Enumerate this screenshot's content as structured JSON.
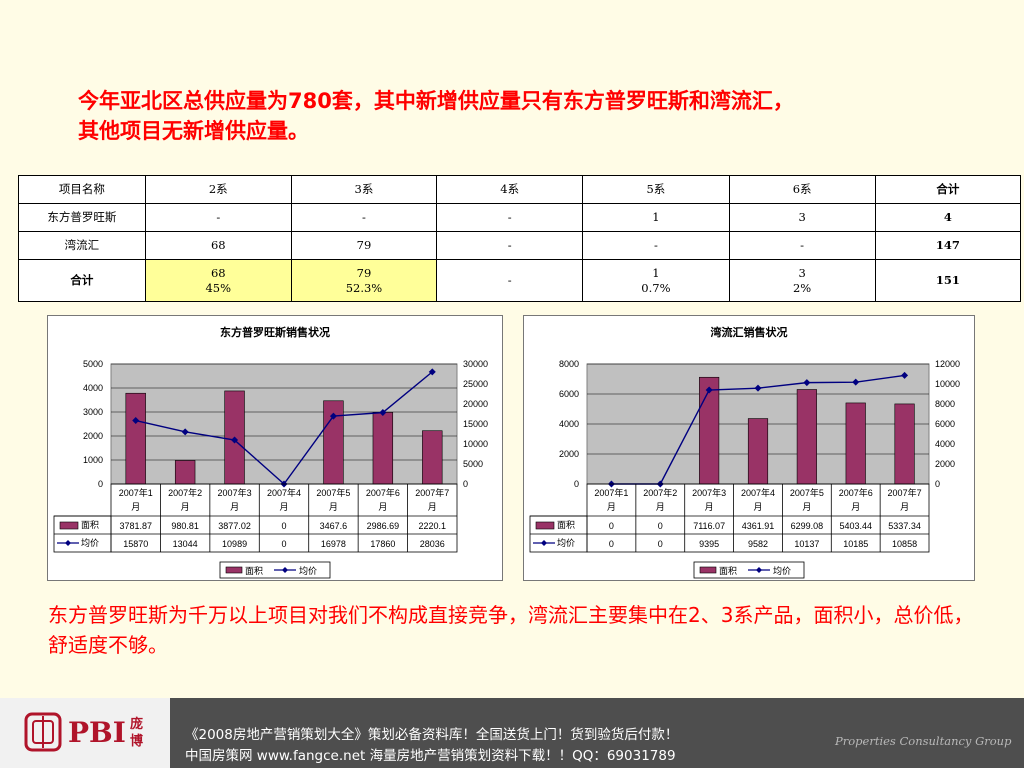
{
  "title": {
    "line1": "今年亚北区总供应量为780套，其中新增供应量只有东方普罗旺斯和湾流汇，",
    "line2": "其他项目无新增供应量。"
  },
  "summary_table": {
    "header": [
      "项目名称",
      "2系",
      "3系",
      "4系",
      "5系",
      "6系",
      "合计"
    ],
    "rows": [
      [
        "东方普罗旺斯",
        "-",
        "-",
        "-",
        "1",
        "3",
        "4"
      ],
      [
        "湾流汇",
        "68",
        "79",
        "-",
        "-",
        "-",
        "147"
      ]
    ],
    "total_row": {
      "label": "合计",
      "cells": [
        {
          "value": "68",
          "pct": "45%"
        },
        {
          "value": "79",
          "pct": "52.3%"
        },
        {
          "value": "-",
          "pct": ""
        },
        {
          "value": "1",
          "pct": "0.7%"
        },
        {
          "value": "3",
          "pct": "2%"
        }
      ],
      "sum": "151"
    },
    "highlight_color": "#ffff99"
  },
  "chart_data": [
    {
      "type": "bar+line",
      "title": "东方普罗旺斯销售状况",
      "categories": [
        "2007年1月",
        "2007年2月",
        "2007年3月",
        "2007年4月",
        "2007年5月",
        "2007年6月",
        "2007年7月"
      ],
      "category_lines": [
        [
          "2007年1",
          "月"
        ],
        [
          "2007年2",
          "月"
        ],
        [
          "2007年3",
          "月"
        ],
        [
          "2007年4",
          "月"
        ],
        [
          "2007年5",
          "月"
        ],
        [
          "2007年6",
          "月"
        ],
        [
          "2007年7",
          "月"
        ]
      ],
      "series": [
        {
          "name": "面积",
          "type": "bar",
          "axis": "left",
          "values": [
            3781.87,
            980.81,
            3877.02,
            0,
            3467.6,
            2986.69,
            2220.1
          ],
          "labels": [
            "3781.87",
            "980.81",
            "3877.02",
            "0",
            "3467.6",
            "2986.69",
            "2220.1"
          ],
          "color": "#993366"
        },
        {
          "name": "均价",
          "type": "line",
          "axis": "right",
          "values": [
            15870,
            13044,
            10989,
            0,
            16978,
            17860,
            28036
          ],
          "labels": [
            "15870",
            "13044",
            "10989",
            "0",
            "16978",
            "17860",
            "28036"
          ],
          "color": "#000080"
        }
      ],
      "y_left": {
        "min": 0,
        "max": 5000,
        "ticks": [
          "0",
          "1000",
          "2000",
          "3000",
          "4000",
          "5000"
        ]
      },
      "y_right": {
        "min": 0,
        "max": 30000,
        "ticks": [
          "0",
          "5000",
          "10000",
          "15000",
          "20000",
          "25000",
          "30000"
        ]
      },
      "legend": [
        "面积",
        "均价"
      ],
      "legend_position": "bottom",
      "grid": true,
      "plot_bg": "#c0c0c0"
    },
    {
      "type": "bar+line",
      "title": "湾流汇销售状况",
      "categories": [
        "2007年1月",
        "2007年2月",
        "2007年3月",
        "2007年4月",
        "2007年5月",
        "2007年6月",
        "2007年7月"
      ],
      "category_lines": [
        [
          "2007年1",
          "月"
        ],
        [
          "2007年2",
          "月"
        ],
        [
          "2007年3",
          "月"
        ],
        [
          "2007年4",
          "月"
        ],
        [
          "2007年5",
          "月"
        ],
        [
          "2007年6",
          "月"
        ],
        [
          "2007年7",
          "月"
        ]
      ],
      "series": [
        {
          "name": "面积",
          "type": "bar",
          "axis": "left",
          "values": [
            0,
            0,
            7116.07,
            4361.91,
            6299.08,
            5403.44,
            5337.34
          ],
          "labels": [
            "0",
            "0",
            "7116.07",
            "4361.91",
            "6299.08",
            "5403.44",
            "5337.34"
          ],
          "color": "#993366"
        },
        {
          "name": "均价",
          "type": "line",
          "axis": "right",
          "values": [
            0,
            0,
            9395,
            9582,
            10137,
            10185,
            10858
          ],
          "labels": [
            "0",
            "0",
            "9395",
            "9582",
            "10137",
            "10185",
            "10858"
          ],
          "color": "#000080"
        }
      ],
      "y_left": {
        "min": 0,
        "max": 8000,
        "ticks": [
          "0",
          "2000",
          "4000",
          "6000",
          "8000"
        ]
      },
      "y_right": {
        "min": 0,
        "max": 12000,
        "ticks": [
          "0",
          "2000",
          "4000",
          "6000",
          "8000",
          "10000",
          "12000"
        ]
      },
      "legend": [
        "面积",
        "均价"
      ],
      "legend_position": "bottom",
      "grid": true,
      "plot_bg": "#c0c0c0"
    }
  ],
  "note": "东方普罗旺斯为千万以上项目对我们不构成直接竞争，湾流汇主要集中在2、3系产品，面积小，总价低，舒适度不够。",
  "footer": {
    "brand": "PBI",
    "brand_cn": "庞博",
    "line1": "《2008房地产营销策划大全》策划必备资料库！全国送货上门！货到验货后付款！",
    "line2": "中国房策网 www.fangce.net  海量房地产营销策划资料下载！！QQ：69031789",
    "tagline": "Properties Consultancy Group",
    "brand_color": "#b0142a",
    "bar_color": "#4e4e4e"
  }
}
